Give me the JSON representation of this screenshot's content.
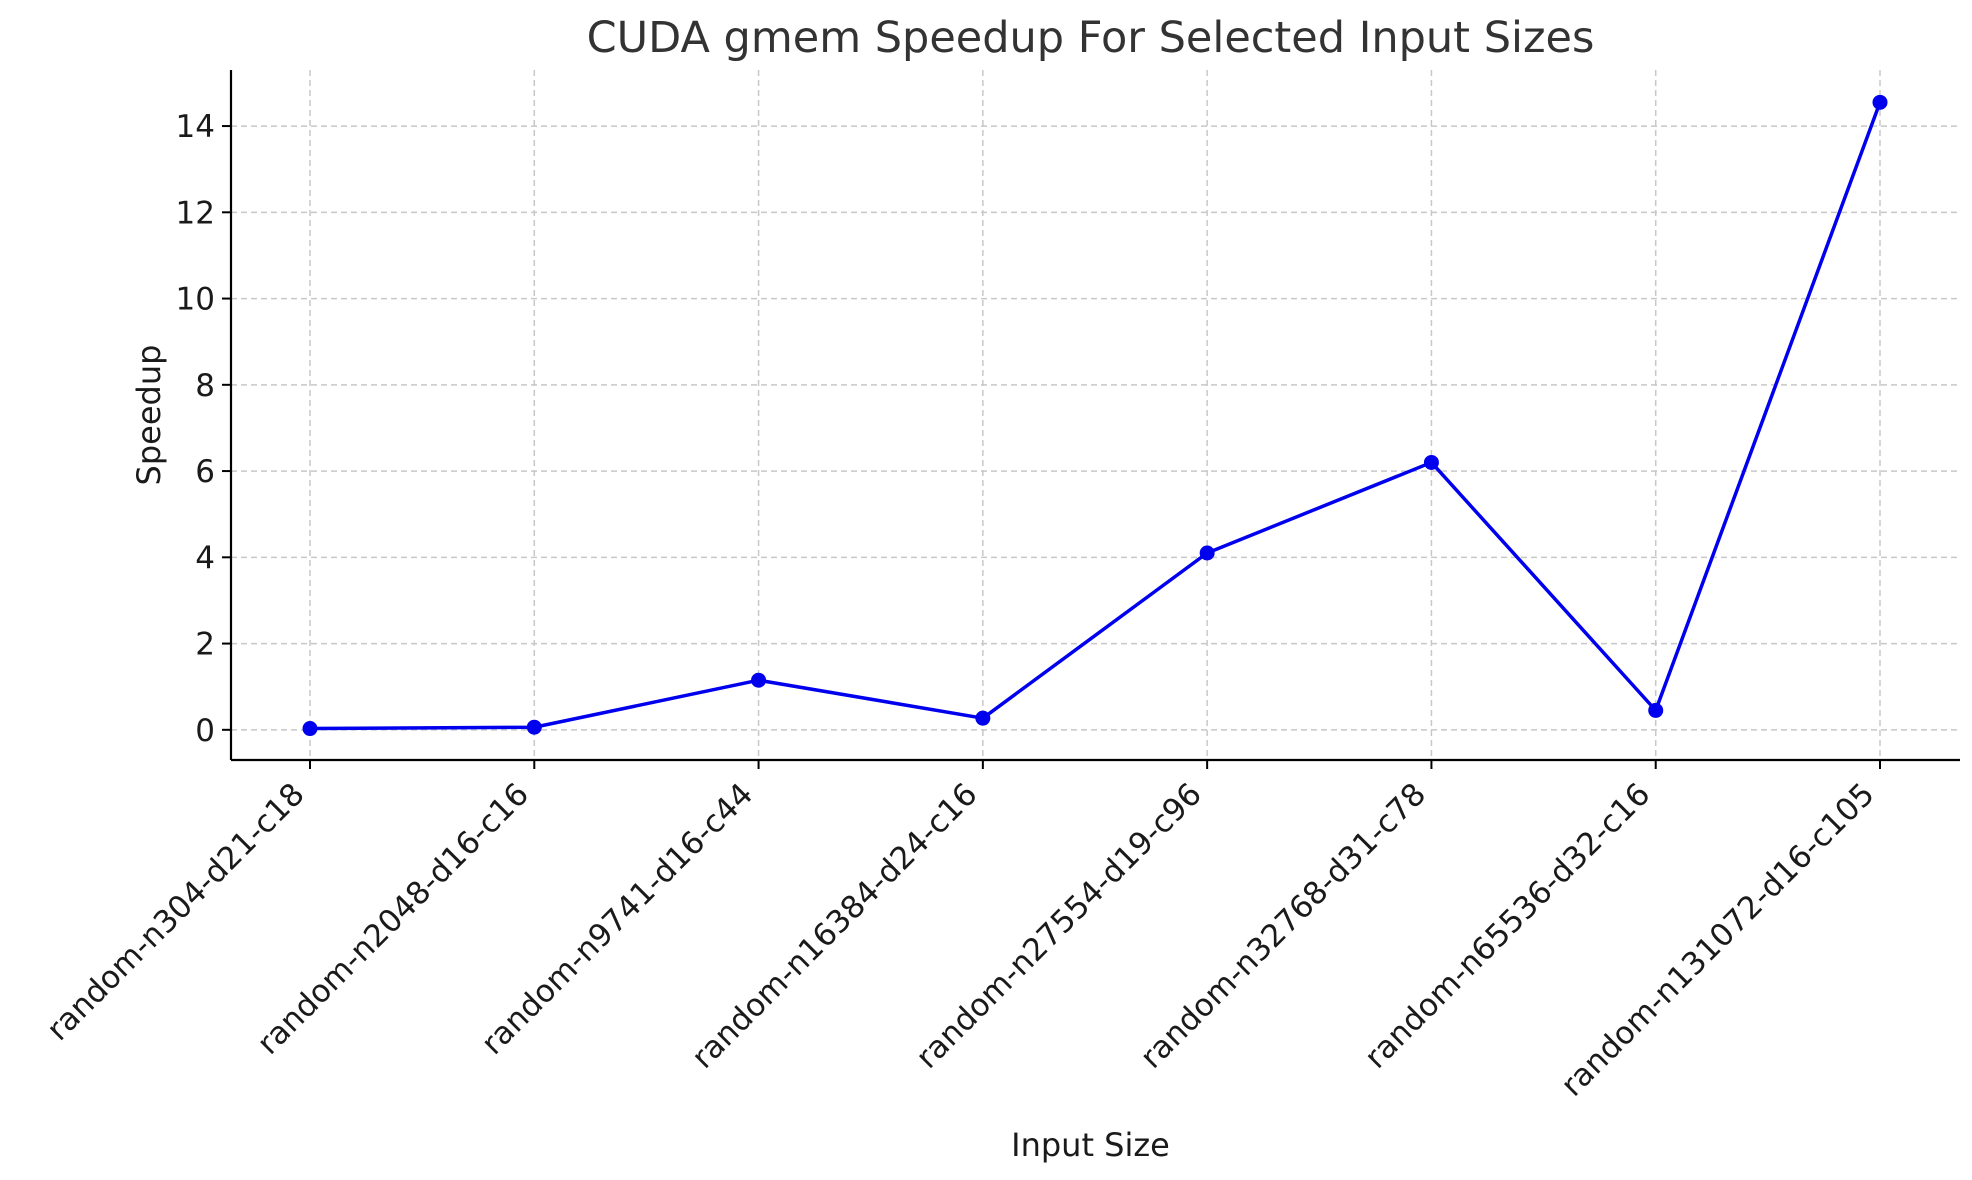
{
  "chart_data": {
    "type": "line",
    "title": "CUDA gmem Speedup For Selected Input Sizes",
    "xlabel": "Input Size",
    "ylabel": "Speedup",
    "categories": [
      "random-n304-d21-c18",
      "random-n2048-d16-c16",
      "random-n9741-d16-c44",
      "random-n16384-d24-c16",
      "random-n27554-d19-c96",
      "random-n32768-d31-c78",
      "random-n65536-d32-c16",
      "random-n131072-d16-c105"
    ],
    "series": [
      {
        "values": [
          0.03,
          0.06,
          1.15,
          0.27,
          4.1,
          6.2,
          0.45,
          14.55
        ],
        "color": "#0000ee",
        "marker": "circle"
      }
    ],
    "ylim": [
      -0.7,
      15.3
    ],
    "yticks": [
      0,
      2,
      4,
      6,
      8,
      10,
      12,
      14
    ],
    "grid": true,
    "legend": "none"
  }
}
